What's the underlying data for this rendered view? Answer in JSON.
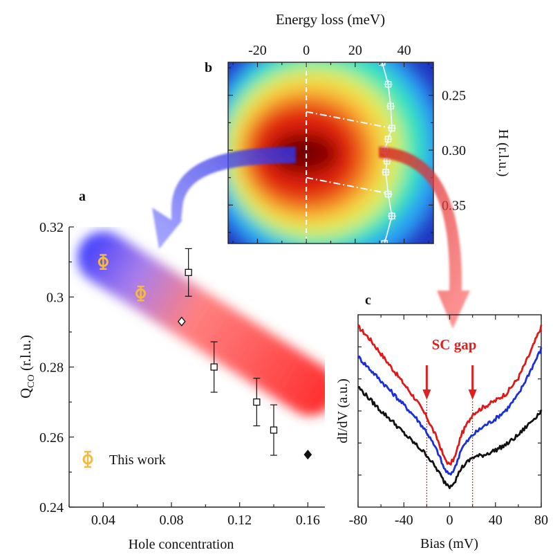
{
  "chart_data": [
    {
      "id": "a",
      "panel_label": "a",
      "type": "scatter",
      "xlabel": "Hole concentration",
      "ylabel": "Q",
      "ylabel_sub": "CO",
      "ylabel_unit": " (r.l.u.)",
      "xlim": [
        0.02,
        0.17
      ],
      "ylim": [
        0.24,
        0.32
      ],
      "xticks": [
        0.04,
        0.08,
        0.12,
        0.16
      ],
      "xtick_labels": [
        "0.04",
        "0.08",
        "0.12",
        "0.16"
      ],
      "yticks": [
        0.24,
        0.26,
        0.28,
        0.3,
        0.32
      ],
      "ytick_labels": [
        "0.24",
        "0.26",
        "0.28",
        "0.3",
        "0.32"
      ],
      "legend": {
        "label": "This work",
        "placement": "bottom-left"
      },
      "series": [
        {
          "name": "This work",
          "marker": "circle",
          "color": "#f4b942",
          "x": [
            0.04,
            0.062
          ],
          "y": [
            0.31,
            0.301
          ],
          "yerr": [
            0.002,
            0.002
          ]
        },
        {
          "marker": "square-open",
          "color": "#111111",
          "x": [
            0.09,
            0.105,
            0.13,
            0.14
          ],
          "y": [
            0.307,
            0.28,
            0.27,
            0.262
          ],
          "yerr": [
            0.0068,
            0.0072,
            0.0068,
            0.0072
          ]
        },
        {
          "marker": "diamond-open",
          "color": "#111111",
          "x": [
            0.086
          ],
          "y": [
            0.293
          ]
        },
        {
          "marker": "diamond-filled",
          "color": "#111111",
          "x": [
            0.16
          ],
          "y": [
            0.255
          ]
        }
      ]
    },
    {
      "id": "b",
      "panel_label": "b",
      "type": "heatmap",
      "xlabel": "Energy loss (meV)",
      "ylabel": "H (r.l.u.)",
      "xlim": [
        -32,
        52
      ],
      "ylim": [
        0.22,
        0.385
      ],
      "xticks": [
        -20,
        0,
        20,
        40
      ],
      "xtick_labels": [
        "-20",
        "0",
        "20",
        "40"
      ],
      "yticks": [
        0.25,
        0.3,
        0.35
      ],
      "ytick_labels": [
        "0.25",
        "0.30",
        "0.35"
      ],
      "peak_energy_vs_H": {
        "H": [
          0.22,
          0.24,
          0.26,
          0.28,
          0.29,
          0.3,
          0.31,
          0.32,
          0.34,
          0.36,
          0.385
        ],
        "E": [
          31,
          33.5,
          34.5,
          35,
          33.5,
          32,
          33,
          32.5,
          33.5,
          35,
          32
        ]
      },
      "colors": [
        "#2035c0",
        "#2a9df4",
        "#39e6b8",
        "#d8f060",
        "#f7d040",
        "#f47a20",
        "#e02010",
        "#8a0000"
      ]
    },
    {
      "id": "c",
      "panel_label": "c",
      "type": "line",
      "xlabel": "Bias (mV)",
      "ylabel": "dI/dV (a.u.)",
      "xlim": [
        -80,
        80
      ],
      "xticks": [
        -80,
        -40,
        0,
        40,
        80
      ],
      "xtick_labels": [
        "-80",
        "-40",
        "0",
        "40",
        "80"
      ],
      "annotation": {
        "text": "SC gap",
        "x": [
          -20,
          20
        ],
        "color": "#e02020"
      },
      "x": [
        -80,
        -70,
        -60,
        -50,
        -40,
        -30,
        -20,
        -10,
        -5,
        0,
        5,
        10,
        20,
        30,
        40,
        50,
        60,
        70,
        80
      ],
      "series": [
        {
          "color": "#e01818",
          "values": [
            2.95,
            2.75,
            2.5,
            2.25,
            2.0,
            1.75,
            1.45,
            1.05,
            0.78,
            0.65,
            0.8,
            1.15,
            1.5,
            1.62,
            1.72,
            1.85,
            2.1,
            2.5,
            2.95
          ]
        },
        {
          "color": "#1a2fd8",
          "values": [
            2.45,
            2.25,
            2.05,
            1.85,
            1.65,
            1.45,
            1.2,
            0.85,
            0.6,
            0.48,
            0.62,
            0.92,
            1.15,
            1.3,
            1.42,
            1.58,
            1.82,
            2.2,
            2.58
          ]
        },
        {
          "color": "#111111",
          "values": [
            1.95,
            1.75,
            1.55,
            1.38,
            1.18,
            1.0,
            0.82,
            0.55,
            0.38,
            0.3,
            0.4,
            0.6,
            0.78,
            0.82,
            0.9,
            1.0,
            1.15,
            1.35,
            1.55
          ]
        }
      ]
    }
  ]
}
